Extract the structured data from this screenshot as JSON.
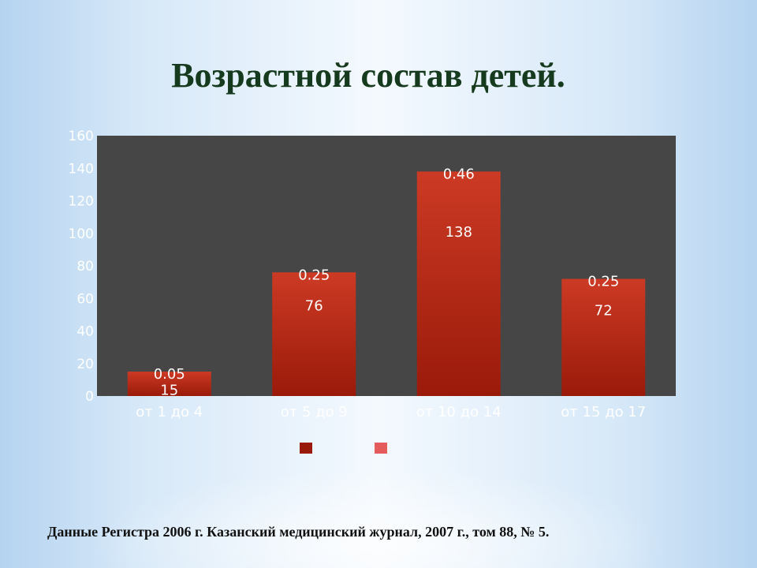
{
  "title": "Возрастной состав детей.",
  "source": "Данные Регистра 2006 г. Казанский медицинский журнал, 2007 г., том 88, № 5.",
  "colors": {
    "plot_bg": "#464646",
    "bar_top": "#cc3a24",
    "bar_bottom": "#9a1a0a",
    "legend_series_2": "#e55a5a"
  },
  "chart_data": {
    "type": "bar",
    "categories": [
      "от 1 до 4",
      "от 5 до 9",
      "от 10 до 14",
      "от 15 до 17"
    ],
    "series": [
      {
        "values": [
          15,
          76,
          138,
          72
        ]
      },
      {
        "values": [
          0.05,
          0.25,
          0.46,
          0.25
        ]
      }
    ],
    "yticks": [
      0,
      20,
      40,
      60,
      80,
      100,
      120,
      140,
      160
    ],
    "ylim": [
      0,
      160
    ],
    "legend_position": "bottom",
    "grid": false
  }
}
